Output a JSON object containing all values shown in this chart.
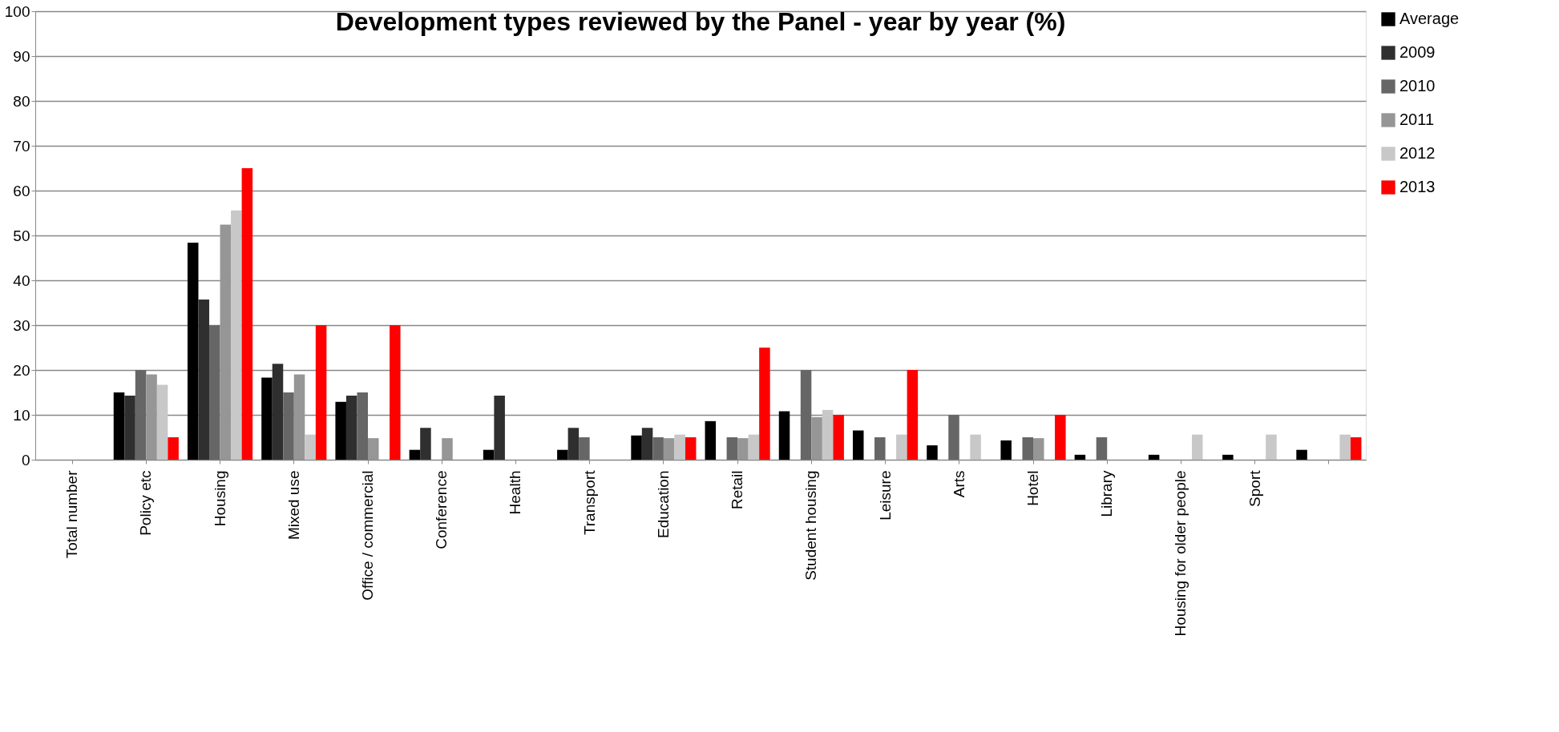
{
  "chart_data": {
    "type": "bar",
    "title": "Development types reviewed by the Panel - year by year (%)",
    "categories": [
      "Total number",
      "Policy etc",
      "Housing",
      "Mixed use",
      "Office / commercial",
      "Conference",
      "Health",
      "Transport",
      "Education",
      "Retail",
      "Student housing",
      "Leisure",
      "Arts",
      "Hotel",
      "Library",
      "Housing for older people",
      "Sport",
      null
    ],
    "series": [
      {
        "name": "Average",
        "color": "#000000",
        "values": [
          null,
          15,
          48.4,
          18.3,
          12.9,
          2.2,
          2.2,
          2.2,
          5.4,
          8.6,
          10.8,
          6.5,
          3.2,
          4.3,
          1.1,
          1.1,
          1.1,
          2.2
        ]
      },
      {
        "name": "2009",
        "color": "#2f2f2f",
        "values": [
          null,
          14.3,
          35.7,
          21.4,
          14.3,
          7.1,
          14.3,
          7.1,
          7.1,
          null,
          null,
          null,
          null,
          null,
          null,
          null,
          null,
          null
        ]
      },
      {
        "name": "2010",
        "color": "#666666",
        "values": [
          null,
          20,
          30,
          15,
          15,
          null,
          null,
          5,
          5,
          5,
          20,
          5,
          10,
          5,
          5,
          null,
          null,
          null
        ]
      },
      {
        "name": "2011",
        "color": "#969696",
        "values": [
          null,
          19,
          52.4,
          19,
          4.8,
          4.8,
          null,
          null,
          4.8,
          4.8,
          9.5,
          null,
          null,
          4.8,
          null,
          null,
          null,
          null
        ]
      },
      {
        "name": "2012",
        "color": "#c8c8c8",
        "values": [
          null,
          16.7,
          55.6,
          5.6,
          null,
          null,
          null,
          null,
          5.6,
          5.6,
          11.1,
          5.6,
          5.6,
          null,
          null,
          5.6,
          5.6,
          5.6
        ]
      },
      {
        "name": "2013",
        "color": "#ff0000",
        "values": [
          null,
          5,
          65,
          30,
          30,
          null,
          null,
          null,
          5,
          25,
          10,
          20,
          null,
          10,
          null,
          null,
          null,
          5
        ]
      }
    ],
    "ylim": [
      0,
      100
    ],
    "yticks": [
      0,
      10,
      20,
      30,
      40,
      50,
      60,
      70,
      80,
      90,
      100
    ],
    "grid": "y",
    "legend": "right"
  }
}
